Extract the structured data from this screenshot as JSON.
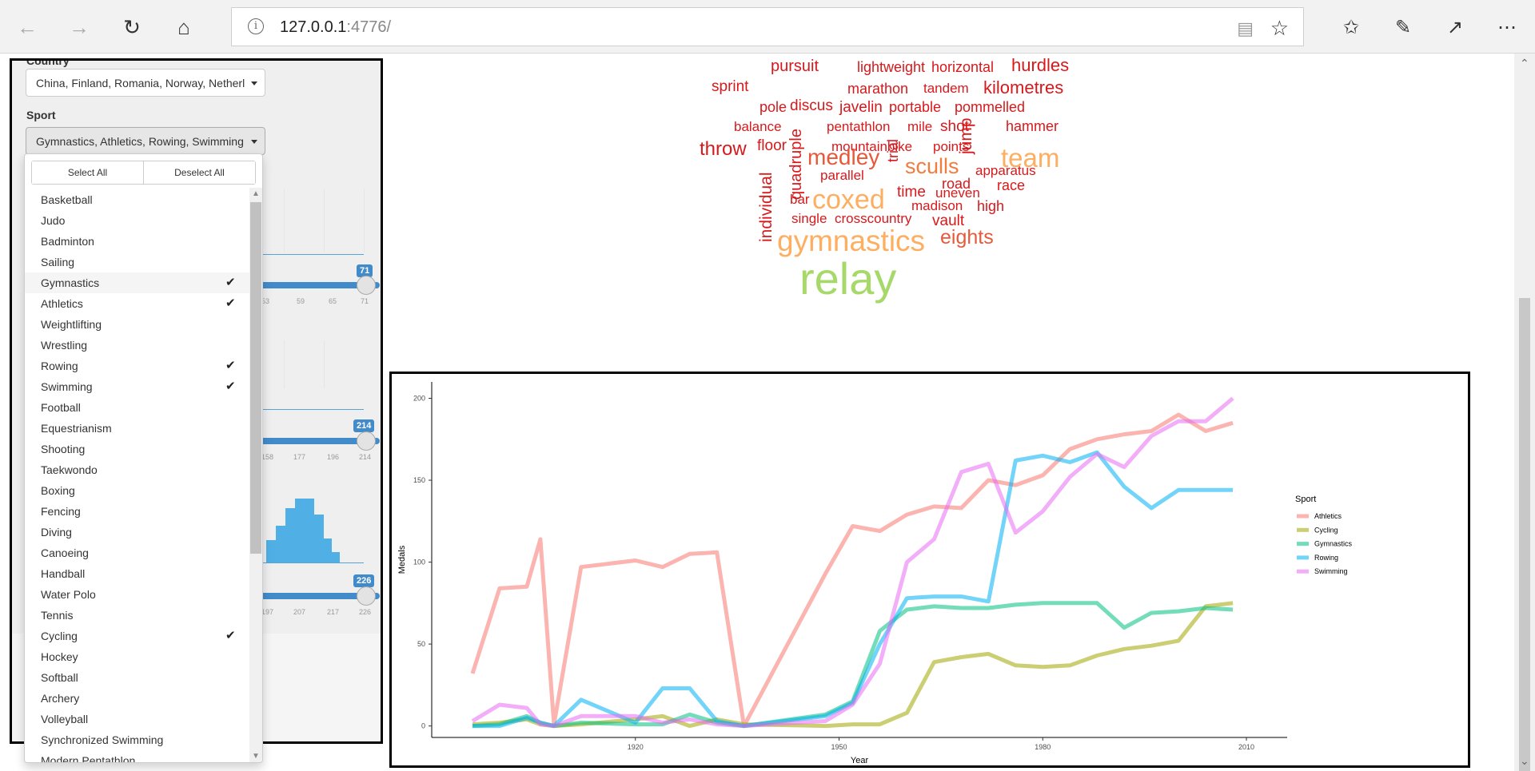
{
  "browser": {
    "url_host": "127.0.0.1",
    "url_port": ":4776/"
  },
  "sidebar": {
    "country": {
      "label": "Country",
      "value": "China, Finland, Romania, Norway, Netherl"
    },
    "sport": {
      "label": "Sport",
      "value": "Gymnastics, Athletics, Rowing, Swimming",
      "select_all_label": "Select All",
      "deselect_all_label": "Deselect All",
      "options": [
        {
          "label": "Basketball",
          "checked": false
        },
        {
          "label": "Judo",
          "checked": false
        },
        {
          "label": "Badminton",
          "checked": false
        },
        {
          "label": "Sailing",
          "checked": false
        },
        {
          "label": "Gymnastics",
          "checked": true
        },
        {
          "label": "Athletics",
          "checked": true
        },
        {
          "label": "Weightlifting",
          "checked": false
        },
        {
          "label": "Wrestling",
          "checked": false
        },
        {
          "label": "Rowing",
          "checked": true
        },
        {
          "label": "Swimming",
          "checked": true
        },
        {
          "label": "Football",
          "checked": false
        },
        {
          "label": "Equestrianism",
          "checked": false
        },
        {
          "label": "Shooting",
          "checked": false
        },
        {
          "label": "Taekwondo",
          "checked": false
        },
        {
          "label": "Boxing",
          "checked": false
        },
        {
          "label": "Fencing",
          "checked": false
        },
        {
          "label": "Diving",
          "checked": false
        },
        {
          "label": "Canoeing",
          "checked": false
        },
        {
          "label": "Handball",
          "checked": false
        },
        {
          "label": "Water Polo",
          "checked": false
        },
        {
          "label": "Tennis",
          "checked": false
        },
        {
          "label": "Cycling",
          "checked": true
        },
        {
          "label": "Hockey",
          "checked": false
        },
        {
          "label": "Softball",
          "checked": false
        },
        {
          "label": "Archery",
          "checked": false
        },
        {
          "label": "Volleyball",
          "checked": false
        },
        {
          "label": "Synchronized Swimming",
          "checked": false
        },
        {
          "label": "Modern Pentathlon",
          "checked": false
        }
      ]
    },
    "sliders": [
      {
        "badge": "71",
        "ticks": [
          "53",
          "59",
          "65",
          "71"
        ]
      },
      {
        "badge": "214",
        "ticks": [
          "158",
          "177",
          "196",
          "214"
        ]
      },
      {
        "badge": "226",
        "ticks": [
          "197",
          "207",
          "217",
          "226"
        ]
      }
    ]
  },
  "wordcloud": {
    "words": [
      {
        "text": "pursuit",
        "size": 20,
        "color": "#d7191c"
      },
      {
        "text": "lightweight",
        "size": 18,
        "color": "#d7191c"
      },
      {
        "text": "horizontal",
        "size": 18,
        "color": "#d7191c"
      },
      {
        "text": "hurdles",
        "size": 22,
        "color": "#d7191c"
      },
      {
        "text": "sprint",
        "size": 19,
        "color": "#d7191c"
      },
      {
        "text": "marathon",
        "size": 18,
        "color": "#d7191c"
      },
      {
        "text": "tandem",
        "size": 17,
        "color": "#d7191c"
      },
      {
        "text": "kilometres",
        "size": 22,
        "color": "#d7191c"
      },
      {
        "text": "pole",
        "size": 18,
        "color": "#d7191c"
      },
      {
        "text": "discus",
        "size": 19,
        "color": "#d7191c"
      },
      {
        "text": "javelin",
        "size": 19,
        "color": "#d7191c"
      },
      {
        "text": "portable",
        "size": 18,
        "color": "#d7191c"
      },
      {
        "text": "pommelled",
        "size": 18,
        "color": "#d7191c"
      },
      {
        "text": "balance",
        "size": 17,
        "color": "#d7191c"
      },
      {
        "text": "pentathlon",
        "size": 17,
        "color": "#d7191c"
      },
      {
        "text": "mile",
        "size": 17,
        "color": "#d7191c"
      },
      {
        "text": "shot",
        "size": 19,
        "color": "#d7191c"
      },
      {
        "text": "hammer",
        "size": 18,
        "color": "#d7191c"
      },
      {
        "text": "mountainbike",
        "size": 17,
        "color": "#d7191c"
      },
      {
        "text": "points",
        "size": 17,
        "color": "#d7191c"
      },
      {
        "text": "throw",
        "size": 24,
        "color": "#d7191c"
      },
      {
        "text": "floor",
        "size": 19,
        "color": "#d7191c"
      },
      {
        "text": "medley",
        "size": 28,
        "color": "#e8593a"
      },
      {
        "text": "team",
        "size": 33,
        "color": "#fdae61"
      },
      {
        "text": "sculls",
        "size": 27,
        "color": "#f07c3f"
      },
      {
        "text": "apparatus",
        "size": 17,
        "color": "#d7191c"
      },
      {
        "text": "parallel",
        "size": 17,
        "color": "#d7191c"
      },
      {
        "text": "road",
        "size": 18,
        "color": "#d7191c"
      },
      {
        "text": "race",
        "size": 18,
        "color": "#d7191c"
      },
      {
        "text": "time",
        "size": 19,
        "color": "#d7191c"
      },
      {
        "text": "uneven",
        "size": 17,
        "color": "#d7191c"
      },
      {
        "text": "coxed",
        "size": 34,
        "color": "#fdae61"
      },
      {
        "text": "bar",
        "size": 17,
        "color": "#d7191c"
      },
      {
        "text": "madison",
        "size": 17,
        "color": "#d7191c"
      },
      {
        "text": "high",
        "size": 18,
        "color": "#d7191c"
      },
      {
        "text": "single",
        "size": 17,
        "color": "#d7191c"
      },
      {
        "text": "crosscountry",
        "size": 17,
        "color": "#d7191c"
      },
      {
        "text": "vault",
        "size": 19,
        "color": "#d7191c"
      },
      {
        "text": "gymnastics",
        "size": 37,
        "color": "#fdae61"
      },
      {
        "text": "eights",
        "size": 25,
        "color": "#e8593a"
      },
      {
        "text": "relay",
        "size": 56,
        "color": "#a6d96a"
      },
      {
        "text": "individual",
        "size": 21,
        "color": "#d7191c"
      },
      {
        "text": "quadruple",
        "size": 20,
        "color": "#d7191c"
      },
      {
        "text": "trial",
        "size": 18,
        "color": "#d7191c"
      },
      {
        "text": "jump",
        "size": 21,
        "color": "#d7191c"
      }
    ]
  },
  "chart_data": {
    "type": "line",
    "xlabel": "Year",
    "ylabel": "Medals",
    "xlim": [
      1890,
      2016
    ],
    "ylim": [
      -7,
      210
    ],
    "x_ticks": [
      "1920",
      "1950",
      "1980",
      "2010"
    ],
    "y_ticks": [
      "0",
      "50",
      "100",
      "150",
      "200"
    ],
    "legend_title": "Sport",
    "legend_position": "right",
    "series": [
      {
        "name": "Athletics",
        "color": "#f8766d",
        "x": [
          1896,
          1900,
          1904,
          1906,
          1908,
          1912,
          1920,
          1924,
          1928,
          1932,
          1936,
          1948,
          1952,
          1956,
          1960,
          1964,
          1968,
          1972,
          1976,
          1980,
          1984,
          1988,
          1992,
          1996,
          2000,
          2004,
          2008
        ],
        "y": [
          32,
          84,
          85,
          114,
          1,
          97,
          101,
          97,
          105,
          106,
          0,
          93,
          122,
          119,
          129,
          134,
          133,
          150,
          147,
          153,
          169,
          175,
          178,
          180,
          190,
          180,
          185
        ]
      },
      {
        "name": "Cycling",
        "color": "#a3a500",
        "x": [
          1896,
          1900,
          1904,
          1906,
          1908,
          1912,
          1920,
          1924,
          1928,
          1932,
          1936,
          1948,
          1952,
          1956,
          1960,
          1964,
          1968,
          1972,
          1976,
          1980,
          1984,
          1988,
          1992,
          1996,
          2000,
          2004,
          2008
        ],
        "y": [
          1,
          2,
          4,
          1,
          0,
          1,
          4,
          6,
          0,
          4,
          1,
          0,
          1,
          1,
          8,
          39,
          42,
          44,
          37,
          36,
          37,
          43,
          47,
          49,
          52,
          73,
          75
        ]
      },
      {
        "name": "Gymnastics",
        "color": "#00bf7d",
        "x": [
          1896,
          1900,
          1904,
          1906,
          1908,
          1912,
          1920,
          1924,
          1928,
          1932,
          1936,
          1948,
          1952,
          1956,
          1960,
          1964,
          1968,
          1972,
          1976,
          1980,
          1984,
          1988,
          1992,
          1996,
          2000,
          2004,
          2008
        ],
        "y": [
          0,
          1,
          6,
          2,
          0,
          2,
          1,
          1,
          7,
          2,
          0,
          7,
          15,
          58,
          71,
          73,
          72,
          72,
          74,
          75,
          75,
          75,
          60,
          69,
          70,
          72,
          71
        ]
      },
      {
        "name": "Rowing",
        "color": "#00b0f6",
        "x": [
          1896,
          1900,
          1904,
          1906,
          1908,
          1912,
          1920,
          1924,
          1928,
          1932,
          1936,
          1948,
          1952,
          1956,
          1960,
          1964,
          1968,
          1972,
          1976,
          1980,
          1984,
          1988,
          1992,
          1996,
          2000,
          2004,
          2008
        ],
        "y": [
          0,
          0,
          5,
          2,
          0,
          16,
          2,
          23,
          23,
          3,
          0,
          6,
          14,
          50,
          78,
          79,
          79,
          76,
          162,
          165,
          161,
          167,
          146,
          133,
          144,
          144,
          144
        ]
      },
      {
        "name": "Swimming",
        "color": "#e76bf3",
        "x": [
          1896,
          1900,
          1904,
          1906,
          1908,
          1912,
          1920,
          1924,
          1928,
          1932,
          1936,
          1948,
          1952,
          1956,
          1960,
          1964,
          1968,
          1972,
          1976,
          1980,
          1984,
          1988,
          1992,
          1996,
          2000,
          2004,
          2008
        ],
        "y": [
          3,
          13,
          11,
          1,
          0,
          6,
          6,
          2,
          4,
          1,
          0,
          3,
          13,
          38,
          100,
          114,
          155,
          160,
          118,
          131,
          152,
          166,
          158,
          177,
          186,
          186,
          200
        ]
      }
    ]
  }
}
